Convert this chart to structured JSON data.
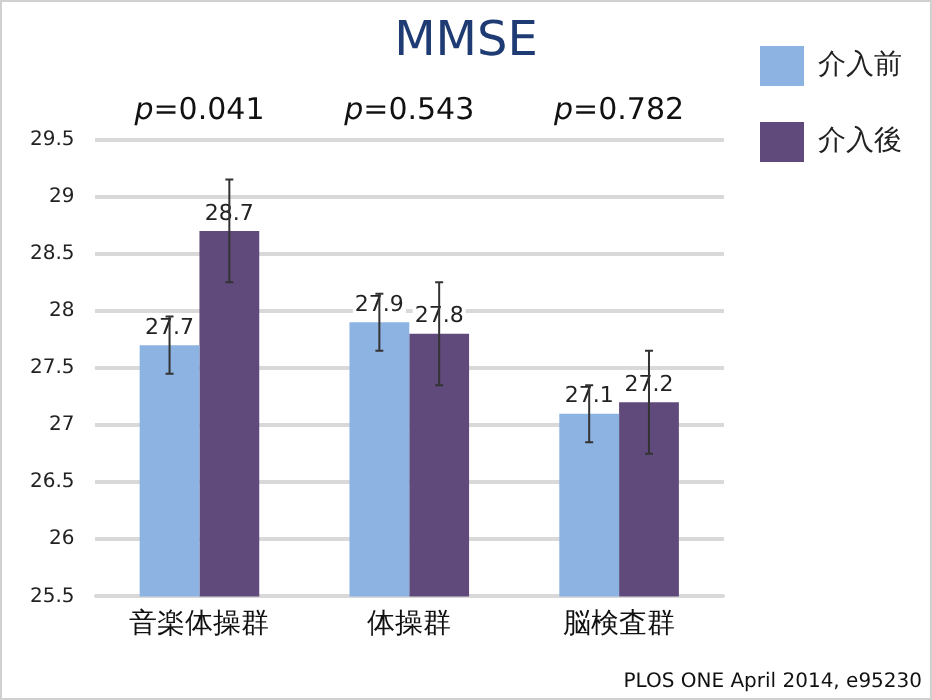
{
  "chart_data": {
    "type": "bar",
    "title": "MMSE",
    "categories": [
      "音楽体操群",
      "体操群",
      "脳検査群"
    ],
    "series": [
      {
        "name": "介入前",
        "color": "#8db3e2",
        "values": [
          27.7,
          27.9,
          27.1
        ],
        "errors": [
          0.25,
          0.25,
          0.25
        ]
      },
      {
        "name": "介入後",
        "color": "#604a7b",
        "values": [
          28.7,
          27.8,
          27.2
        ],
        "errors": [
          0.45,
          0.45,
          0.45
        ]
      }
    ],
    "ylim": [
      25.5,
      29.5
    ],
    "yticks": [
      25.5,
      26,
      26.5,
      27,
      27.5,
      28,
      28.5,
      29,
      29.5
    ],
    "grid": "y",
    "legend": "right",
    "data_labels": true,
    "annotations": [
      "p=0.041",
      "p=0.543",
      "p=0.782",
      "PLOS ONE April 2014, e95230"
    ]
  }
}
